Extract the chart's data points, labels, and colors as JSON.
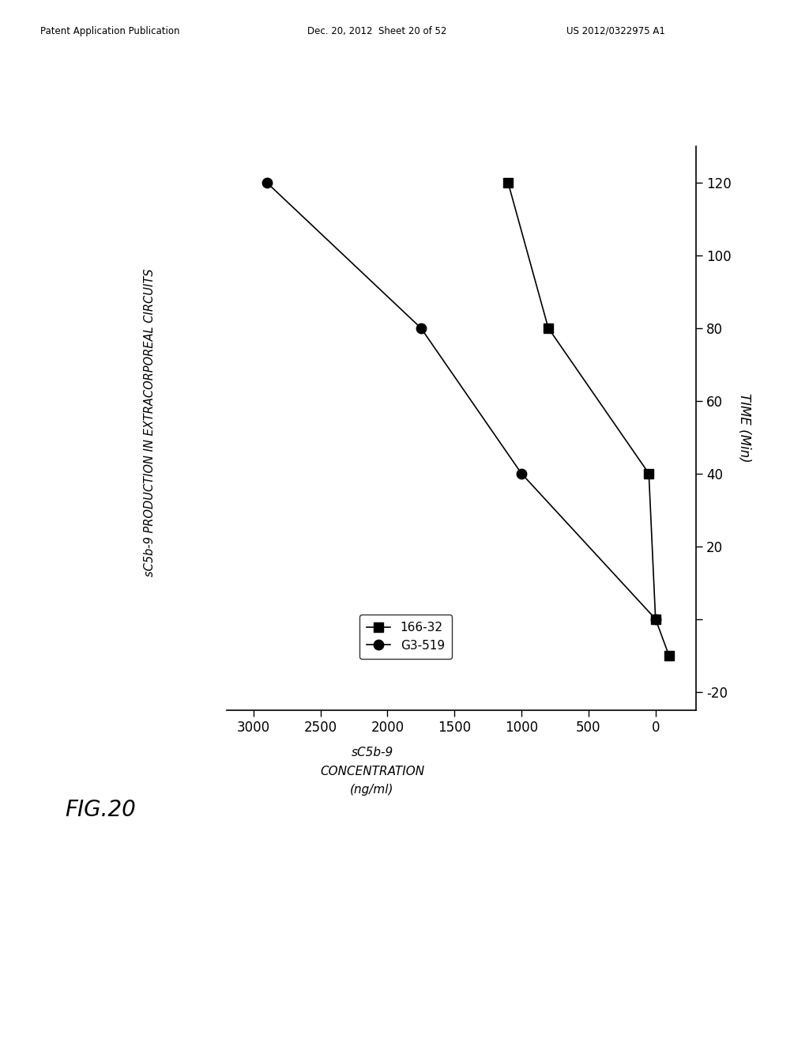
{
  "series_166_32": {
    "time": [
      -10,
      0,
      40,
      80,
      120
    ],
    "conc": [
      -100,
      0,
      50,
      800,
      1100
    ],
    "label": "166-32",
    "marker": "s",
    "color": "black"
  },
  "series_G3_519": {
    "time": [
      0,
      40,
      80,
      120
    ],
    "conc": [
      0,
      1000,
      1750,
      2900
    ],
    "label": "G3-519",
    "marker": "o",
    "color": "black"
  },
  "xlim": [
    3200,
    -300
  ],
  "ylim": [
    -25,
    130
  ],
  "xticks": [
    3000,
    2500,
    2000,
    1500,
    1000,
    500,
    0
  ],
  "yticks": [
    -20,
    0,
    20,
    40,
    60,
    80,
    100,
    120
  ],
  "background_color": "#ffffff",
  "patent_line1": "Patent Application Publication",
  "patent_line2": "Dec. 20, 2012  Sheet 20 of 52",
  "patent_line3": "US 2012/0322975 A1",
  "fig_label": "FIG.20",
  "ylabel_text": "sC5b-9 PRODUCTION IN EXTRACORPOREAL CIRCUITS",
  "xlabel_line1": "sC5b-9",
  "xlabel_line2": "CONCENTRATION",
  "xlabel_line3": "(ng/ml)",
  "time_label": "TIME (Min)"
}
